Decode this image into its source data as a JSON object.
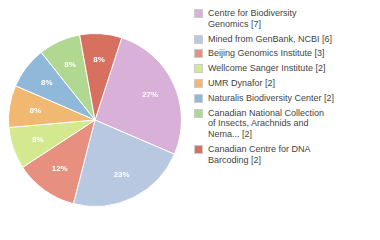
{
  "chart_data": {
    "type": "pie",
    "categories": [
      "Centre for Biodiversity\nGenomics [7]",
      "Mined from GenBank, NCBI [6]",
      "Beijing Genomics Institute [3]",
      "Wellcome Sanger Institute [2]",
      "UMR Dynafor [2]",
      "Naturalis Biodiversity Center [2]",
      "Canadian National Collection\nof Insects, Arachnids and\nNema... [2]",
      "Canadian Centre for DNA\nBarcoding [2]"
    ],
    "values": [
      27,
      23,
      12,
      8,
      8,
      8,
      8,
      8
    ],
    "value_labels": [
      "27%",
      "23%",
      "12%",
      "8%",
      "8%",
      "8%",
      "8%",
      "8%"
    ],
    "colors": [
      "#d8b0d8",
      "#b8c8e0",
      "#e89080",
      "#d4e890",
      "#f0b870",
      "#90b8d8",
      "#b0d890",
      "#d87060"
    ],
    "data_labels": true,
    "legend": "right"
  }
}
